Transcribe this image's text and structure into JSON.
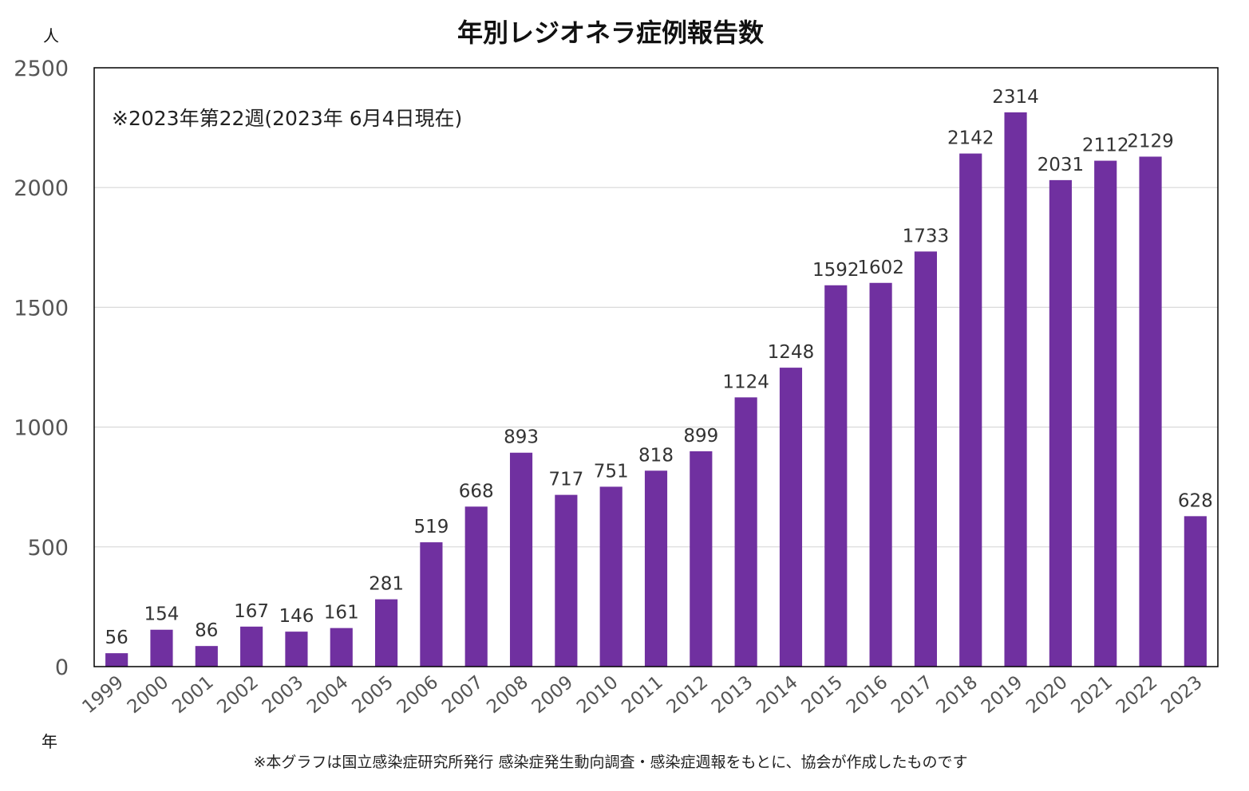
{
  "chart_data": {
    "type": "bar",
    "title": "年別レジオネラ症例報告数",
    "ylabel": "人",
    "xlabel": "年",
    "ylim": [
      0,
      2500
    ],
    "yticks": [
      0,
      500,
      1000,
      1500,
      2000,
      2500
    ],
    "grid": true,
    "legend": "none",
    "categories": [
      "1999",
      "2000",
      "2001",
      "2002",
      "2003",
      "2004",
      "2005",
      "2006",
      "2007",
      "2008",
      "2009",
      "2010",
      "2011",
      "2012",
      "2013",
      "2014",
      "2015",
      "2016",
      "2017",
      "2018",
      "2019",
      "2020",
      "2021",
      "2022",
      "2023"
    ],
    "values": [
      56,
      154,
      86,
      167,
      146,
      161,
      281,
      519,
      668,
      893,
      717,
      751,
      818,
      899,
      1124,
      1248,
      1592,
      1602,
      1733,
      2142,
      2314,
      2031,
      2112,
      2129,
      628
    ],
    "annotation": "※2023年第22週(2023年 6月4日現在)",
    "source_note": "※本グラフは国立感染症研究所発行 感染症発生動向調査・感染症週報をもとに、協会が作成したものです",
    "colors": {
      "bar": "#7030a0",
      "grid": "#d9d9d9",
      "frame": "#000000"
    }
  }
}
